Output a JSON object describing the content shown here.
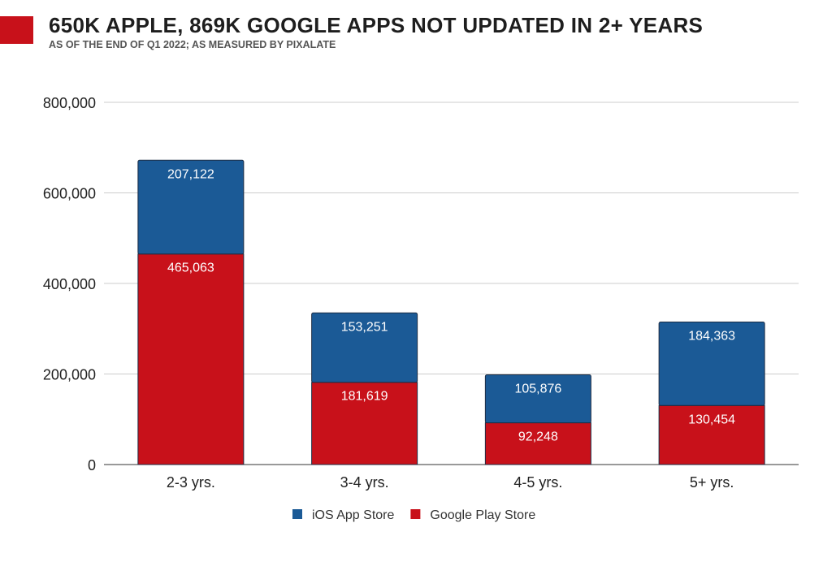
{
  "header": {
    "title": "650K APPLE, 869K GOOGLE APPS NOT UPDATED IN 2+ YEARS",
    "subtitle": "AS OF THE END OF Q1 2022; AS MEASURED BY PIXALATE"
  },
  "chart_data": {
    "type": "bar",
    "stacked": true,
    "title": "650K APPLE, 869K GOOGLE APPS NOT UPDATED IN 2+ YEARS",
    "subtitle": "AS OF THE END OF Q1 2022; AS MEASURED BY PIXALATE",
    "categories": [
      "2-3 yrs.",
      "3-4 yrs.",
      "4-5 yrs.",
      "5+ yrs."
    ],
    "series": [
      {
        "name": "Google Play Store",
        "color": "#c8111a",
        "values": [
          465063,
          181619,
          92248,
          130454
        ],
        "labels": [
          "465,063",
          "181,619",
          "92,248",
          "130,454"
        ]
      },
      {
        "name": "iOS App Store",
        "color": "#1b5a96",
        "values": [
          207122,
          153251,
          105876,
          184363
        ],
        "labels": [
          "207,122",
          "153,251",
          "105,876",
          "184,363"
        ]
      }
    ],
    "legend_order": [
      "iOS App Store",
      "Google Play Store"
    ],
    "ylim": [
      0,
      800000
    ],
    "yticks": [
      0,
      200000,
      400000,
      600000,
      800000
    ],
    "ytick_labels": [
      "0",
      "200,000",
      "400,000",
      "600,000",
      "800,000"
    ],
    "grid": true,
    "legend": "bottom"
  }
}
